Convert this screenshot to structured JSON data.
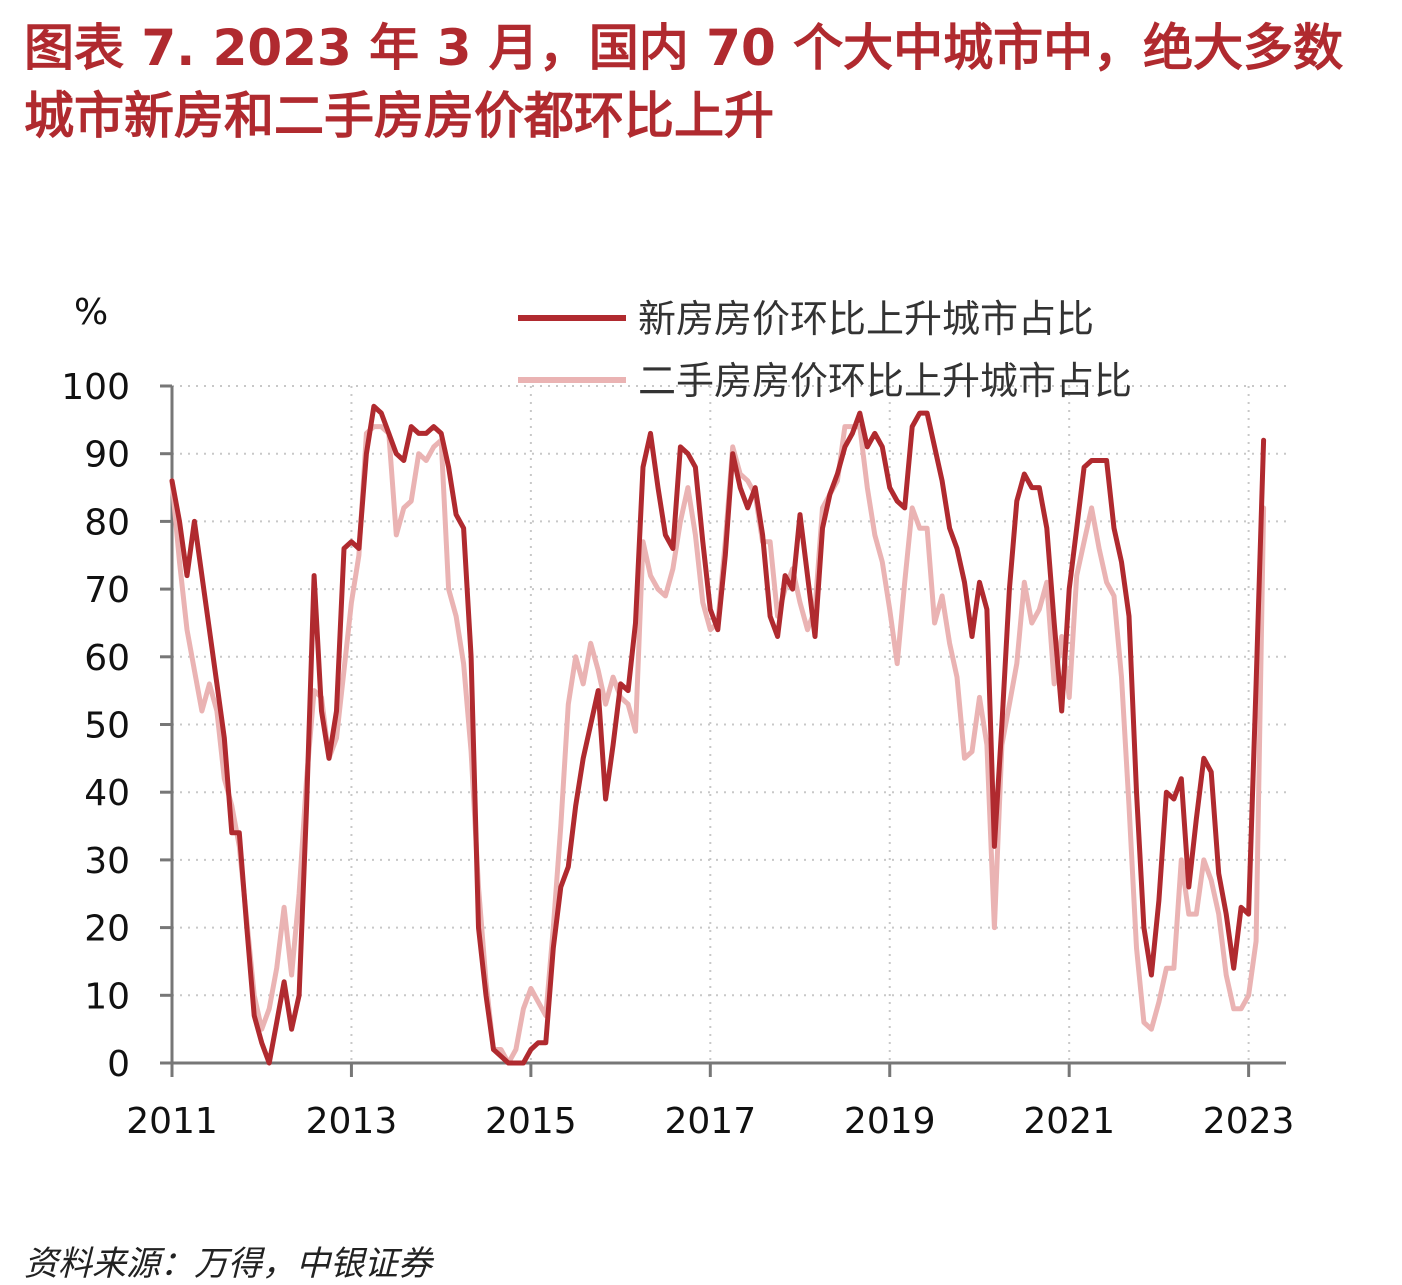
{
  "title": "图表 7.  2023 年 3 月，国内 70 个大中城市中，绝大多数城市新房和二手房房价都环比上升",
  "source": "资料来源：万得，中银证券",
  "colors": {
    "title": "#b02a2f",
    "new_home": "#b02a2f",
    "second_hand": "#eab3b3",
    "grid": "#c8c8c8"
  },
  "chart_data": {
    "type": "line",
    "unit_label": "%",
    "ylim": [
      0,
      100
    ],
    "yticks": [
      0,
      10,
      20,
      30,
      40,
      50,
      60,
      70,
      80,
      90,
      100
    ],
    "xlim": [
      "2011-01",
      "2023-06"
    ],
    "xticks": [
      "2011",
      "2013",
      "2015",
      "2017",
      "2019",
      "2021",
      "2023"
    ],
    "grid": true,
    "legend_position": "top-right",
    "series": [
      {
        "name": "新房房价环比上升城市占比",
        "color": "#b02a2f",
        "points": [
          [
            "2011-01",
            86
          ],
          [
            "2011-02",
            80
          ],
          [
            "2011-03",
            72
          ],
          [
            "2011-04",
            80
          ],
          [
            "2011-05",
            72
          ],
          [
            "2011-06",
            64
          ],
          [
            "2011-07",
            56
          ],
          [
            "2011-08",
            48
          ],
          [
            "2011-09",
            34
          ],
          [
            "2011-10",
            34
          ],
          [
            "2011-11",
            20
          ],
          [
            "2011-12",
            7
          ],
          [
            "2012-01",
            3
          ],
          [
            "2012-02",
            0
          ],
          [
            "2012-03",
            6
          ],
          [
            "2012-04",
            12
          ],
          [
            "2012-05",
            5
          ],
          [
            "2012-06",
            10
          ],
          [
            "2012-07",
            38
          ],
          [
            "2012-08",
            72
          ],
          [
            "2012-09",
            52
          ],
          [
            "2012-10",
            45
          ],
          [
            "2012-11",
            52
          ],
          [
            "2012-12",
            76
          ],
          [
            "2013-01",
            77
          ],
          [
            "2013-02",
            76
          ],
          [
            "2013-03",
            90
          ],
          [
            "2013-04",
            97
          ],
          [
            "2013-05",
            96
          ],
          [
            "2013-06",
            93
          ],
          [
            "2013-07",
            90
          ],
          [
            "2013-08",
            89
          ],
          [
            "2013-09",
            94
          ],
          [
            "2013-10",
            93
          ],
          [
            "2013-11",
            93
          ],
          [
            "2013-12",
            94
          ],
          [
            "2014-01",
            93
          ],
          [
            "2014-02",
            88
          ],
          [
            "2014-03",
            81
          ],
          [
            "2014-04",
            79
          ],
          [
            "2014-05",
            60
          ],
          [
            "2014-06",
            20
          ],
          [
            "2014-07",
            10
          ],
          [
            "2014-08",
            2
          ],
          [
            "2014-09",
            1
          ],
          [
            "2014-10",
            0
          ],
          [
            "2014-11",
            0
          ],
          [
            "2014-12",
            0
          ],
          [
            "2015-01",
            2
          ],
          [
            "2015-02",
            3
          ],
          [
            "2015-03",
            3
          ],
          [
            "2015-04",
            17
          ],
          [
            "2015-05",
            26
          ],
          [
            "2015-06",
            29
          ],
          [
            "2015-07",
            38
          ],
          [
            "2015-08",
            45
          ],
          [
            "2015-09",
            50
          ],
          [
            "2015-10",
            55
          ],
          [
            "2015-11",
            39
          ],
          [
            "2015-12",
            47
          ],
          [
            "2016-01",
            56
          ],
          [
            "2016-02",
            55
          ],
          [
            "2016-03",
            65
          ],
          [
            "2016-04",
            88
          ],
          [
            "2016-05",
            93
          ],
          [
            "2016-06",
            85
          ],
          [
            "2016-07",
            78
          ],
          [
            "2016-08",
            76
          ],
          [
            "2016-09",
            91
          ],
          [
            "2016-10",
            90
          ],
          [
            "2016-11",
            88
          ],
          [
            "2016-12",
            77
          ],
          [
            "2017-01",
            67
          ],
          [
            "2017-02",
            64
          ],
          [
            "2017-03",
            75
          ],
          [
            "2017-04",
            90
          ],
          [
            "2017-05",
            85
          ],
          [
            "2017-06",
            82
          ],
          [
            "2017-07",
            85
          ],
          [
            "2017-08",
            78
          ],
          [
            "2017-09",
            66
          ],
          [
            "2017-10",
            63
          ],
          [
            "2017-11",
            72
          ],
          [
            "2017-12",
            70
          ],
          [
            "2018-01",
            81
          ],
          [
            "2018-02",
            72
          ],
          [
            "2018-03",
            63
          ],
          [
            "2018-04",
            79
          ],
          [
            "2018-05",
            84
          ],
          [
            "2018-06",
            87
          ],
          [
            "2018-07",
            91
          ],
          [
            "2018-08",
            93
          ],
          [
            "2018-09",
            96
          ],
          [
            "2018-10",
            91
          ],
          [
            "2018-11",
            93
          ],
          [
            "2018-12",
            91
          ],
          [
            "2019-01",
            85
          ],
          [
            "2019-02",
            83
          ],
          [
            "2019-03",
            82
          ],
          [
            "2019-04",
            94
          ],
          [
            "2019-05",
            96
          ],
          [
            "2019-06",
            96
          ],
          [
            "2019-07",
            91
          ],
          [
            "2019-08",
            86
          ],
          [
            "2019-09",
            79
          ],
          [
            "2019-10",
            76
          ],
          [
            "2019-11",
            71
          ],
          [
            "2019-12",
            63
          ],
          [
            "2020-01",
            71
          ],
          [
            "2020-02",
            67
          ],
          [
            "2020-03",
            32
          ],
          [
            "2020-04",
            50
          ],
          [
            "2020-05",
            70
          ],
          [
            "2020-06",
            83
          ],
          [
            "2020-07",
            87
          ],
          [
            "2020-08",
            85
          ],
          [
            "2020-09",
            85
          ],
          [
            "2020-10",
            79
          ],
          [
            "2020-11",
            65
          ],
          [
            "2020-12",
            52
          ],
          [
            "2021-01",
            70
          ],
          [
            "2021-02",
            79
          ],
          [
            "2021-03",
            88
          ],
          [
            "2021-04",
            89
          ],
          [
            "2021-05",
            89
          ],
          [
            "2021-06",
            89
          ],
          [
            "2021-07",
            79
          ],
          [
            "2021-08",
            74
          ],
          [
            "2021-09",
            66
          ],
          [
            "2021-10",
            40
          ],
          [
            "2021-11",
            20
          ],
          [
            "2021-12",
            13
          ],
          [
            "2022-01",
            24
          ],
          [
            "2022-02",
            40
          ],
          [
            "2022-03",
            39
          ],
          [
            "2022-04",
            42
          ],
          [
            "2022-05",
            26
          ],
          [
            "2022-06",
            36
          ],
          [
            "2022-07",
            45
          ],
          [
            "2022-08",
            43
          ],
          [
            "2022-09",
            28
          ],
          [
            "2022-10",
            22
          ],
          [
            "2022-11",
            14
          ],
          [
            "2022-12",
            23
          ],
          [
            "2023-01",
            22
          ],
          [
            "2023-02",
            56
          ],
          [
            "2023-03",
            92
          ]
        ]
      },
      {
        "name": "二手房房价环比上升城市占比",
        "color": "#eab3b3",
        "points": [
          [
            "2011-01",
            86
          ],
          [
            "2011-02",
            74
          ],
          [
            "2011-03",
            64
          ],
          [
            "2011-04",
            58
          ],
          [
            "2011-05",
            52
          ],
          [
            "2011-06",
            56
          ],
          [
            "2011-07",
            52
          ],
          [
            "2011-08",
            42
          ],
          [
            "2011-09",
            38
          ],
          [
            "2011-10",
            32
          ],
          [
            "2011-11",
            21
          ],
          [
            "2011-12",
            10
          ],
          [
            "2012-01",
            5
          ],
          [
            "2012-02",
            8
          ],
          [
            "2012-03",
            14
          ],
          [
            "2012-04",
            23
          ],
          [
            "2012-05",
            13
          ],
          [
            "2012-06",
            25
          ],
          [
            "2012-07",
            42
          ],
          [
            "2012-08",
            55
          ],
          [
            "2012-09",
            54
          ],
          [
            "2012-10",
            45
          ],
          [
            "2012-11",
            48
          ],
          [
            "2012-12",
            58
          ],
          [
            "2013-01",
            68
          ],
          [
            "2013-02",
            75
          ],
          [
            "2013-03",
            93
          ],
          [
            "2013-04",
            94
          ],
          [
            "2013-05",
            94
          ],
          [
            "2013-06",
            93
          ],
          [
            "2013-07",
            78
          ],
          [
            "2013-08",
            82
          ],
          [
            "2013-09",
            83
          ],
          [
            "2013-10",
            90
          ],
          [
            "2013-11",
            89
          ],
          [
            "2013-12",
            91
          ],
          [
            "2014-01",
            92
          ],
          [
            "2014-02",
            70
          ],
          [
            "2014-03",
            66
          ],
          [
            "2014-04",
            59
          ],
          [
            "2014-05",
            46
          ],
          [
            "2014-06",
            26
          ],
          [
            "2014-07",
            12
          ],
          [
            "2014-08",
            2
          ],
          [
            "2014-09",
            2
          ],
          [
            "2014-10",
            0
          ],
          [
            "2014-11",
            2
          ],
          [
            "2014-12",
            8
          ],
          [
            "2015-01",
            11
          ],
          [
            "2015-02",
            9
          ],
          [
            "2015-03",
            7
          ],
          [
            "2015-04",
            20
          ],
          [
            "2015-05",
            35
          ],
          [
            "2015-06",
            53
          ],
          [
            "2015-07",
            60
          ],
          [
            "2015-08",
            56
          ],
          [
            "2015-09",
            62
          ],
          [
            "2015-10",
            58
          ],
          [
            "2015-11",
            53
          ],
          [
            "2015-12",
            57
          ],
          [
            "2016-01",
            54
          ],
          [
            "2016-02",
            53
          ],
          [
            "2016-03",
            49
          ],
          [
            "2016-04",
            77
          ],
          [
            "2016-05",
            72
          ],
          [
            "2016-06",
            70
          ],
          [
            "2016-07",
            69
          ],
          [
            "2016-08",
            73
          ],
          [
            "2016-09",
            80
          ],
          [
            "2016-10",
            85
          ],
          [
            "2016-11",
            78
          ],
          [
            "2016-12",
            68
          ],
          [
            "2017-01",
            64
          ],
          [
            "2017-02",
            65
          ],
          [
            "2017-03",
            77
          ],
          [
            "2017-04",
            91
          ],
          [
            "2017-05",
            87
          ],
          [
            "2017-06",
            86
          ],
          [
            "2017-07",
            84
          ],
          [
            "2017-08",
            77
          ],
          [
            "2017-09",
            77
          ],
          [
            "2017-10",
            66
          ],
          [
            "2017-11",
            70
          ],
          [
            "2017-12",
            73
          ],
          [
            "2018-01",
            68
          ],
          [
            "2018-02",
            64
          ],
          [
            "2018-03",
            67
          ],
          [
            "2018-04",
            82
          ],
          [
            "2018-05",
            84
          ],
          [
            "2018-06",
            86
          ],
          [
            "2018-07",
            94
          ],
          [
            "2018-08",
            94
          ],
          [
            "2018-09",
            94
          ],
          [
            "2018-10",
            85
          ],
          [
            "2018-11",
            78
          ],
          [
            "2018-12",
            74
          ],
          [
            "2019-01",
            67
          ],
          [
            "2019-02",
            59
          ],
          [
            "2019-03",
            71
          ],
          [
            "2019-04",
            82
          ],
          [
            "2019-05",
            79
          ],
          [
            "2019-06",
            79
          ],
          [
            "2019-07",
            65
          ],
          [
            "2019-08",
            69
          ],
          [
            "2019-09",
            62
          ],
          [
            "2019-10",
            57
          ],
          [
            "2019-11",
            45
          ],
          [
            "2019-12",
            46
          ],
          [
            "2020-01",
            54
          ],
          [
            "2020-02",
            47
          ],
          [
            "2020-03",
            20
          ],
          [
            "2020-04",
            47
          ],
          [
            "2020-05",
            53
          ],
          [
            "2020-06",
            59
          ],
          [
            "2020-07",
            71
          ],
          [
            "2020-08",
            65
          ],
          [
            "2020-09",
            67
          ],
          [
            "2020-10",
            71
          ],
          [
            "2020-11",
            56
          ],
          [
            "2020-12",
            63
          ],
          [
            "2021-01",
            54
          ],
          [
            "2021-02",
            72
          ],
          [
            "2021-03",
            77
          ],
          [
            "2021-04",
            82
          ],
          [
            "2021-05",
            76
          ],
          [
            "2021-06",
            71
          ],
          [
            "2021-07",
            69
          ],
          [
            "2021-08",
            57
          ],
          [
            "2021-09",
            38
          ],
          [
            "2021-10",
            17
          ],
          [
            "2021-11",
            6
          ],
          [
            "2021-12",
            5
          ],
          [
            "2022-01",
            9
          ],
          [
            "2022-02",
            14
          ],
          [
            "2022-03",
            14
          ],
          [
            "2022-04",
            30
          ],
          [
            "2022-05",
            22
          ],
          [
            "2022-06",
            22
          ],
          [
            "2022-07",
            30
          ],
          [
            "2022-08",
            27
          ],
          [
            "2022-09",
            22
          ],
          [
            "2022-10",
            13
          ],
          [
            "2022-11",
            8
          ],
          [
            "2022-12",
            8
          ],
          [
            "2023-01",
            10
          ],
          [
            "2023-02",
            18
          ],
          [
            "2023-03",
            82
          ]
        ]
      }
    ]
  }
}
